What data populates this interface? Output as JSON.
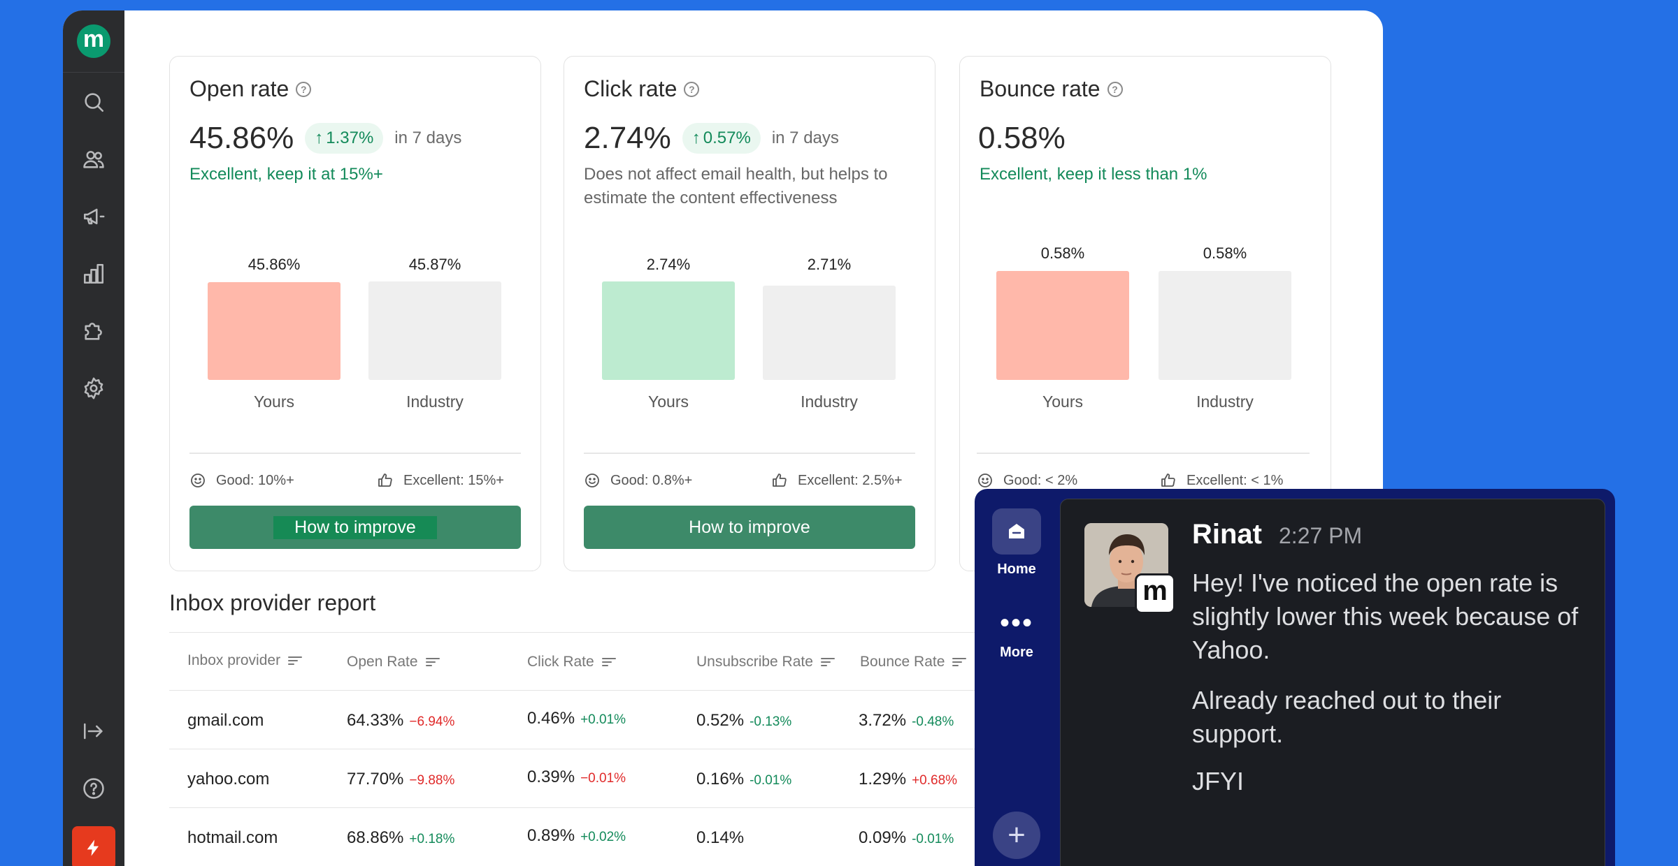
{
  "sidebar": {
    "logo_letter": "m",
    "items": [
      "search-icon",
      "contacts-icon",
      "campaigns-icon",
      "reports-icon",
      "integrations-icon",
      "settings-icon"
    ],
    "bottom_items": [
      "collapse-icon",
      "help-icon",
      "bolt-icon"
    ]
  },
  "cards": [
    {
      "title": "Open rate",
      "value": "45.86%",
      "delta": "1.37%",
      "period": "in 7 days",
      "note": "Excellent, keep it at 15%+",
      "yours_value": "45.86%",
      "industry_value": "45.87%",
      "yours_label": "Yours",
      "industry_label": "Industry",
      "good": "Good: 10%+",
      "excellent": "Excellent: 15%+",
      "button": "How to improve"
    },
    {
      "title": "Click rate",
      "value": "2.74%",
      "delta": "0.57%",
      "period": "in 7 days",
      "note": "Does not affect email health, but helps to estimate the content effectiveness",
      "yours_value": "2.74%",
      "industry_value": "2.71%",
      "yours_label": "Yours",
      "industry_label": "Industry",
      "good": "Good: 0.8%+",
      "excellent": "Excellent: 2.5%+",
      "button": "How to improve"
    },
    {
      "title": "Bounce rate",
      "value": "0.58%",
      "note": "Excellent, keep it less than 1%",
      "yours_value": "0.58%",
      "industry_value": "0.58%",
      "yours_label": "Yours",
      "industry_label": "Industry",
      "good": "Good: < 2%",
      "excellent": "Excellent: < 1%"
    }
  ],
  "colors": {
    "bar_bad": "#ffb8aa",
    "bar_good": "#bdebd0",
    "bar_industry": "#efefef"
  },
  "report": {
    "title": "Inbox provider report",
    "columns": [
      "Inbox provider",
      "Open Rate",
      "Click Rate",
      "Unsubscribe Rate",
      "Bounce Rate"
    ],
    "rows": [
      {
        "provider": "gmail.com",
        "open": "64.33%",
        "open_chg": "−6.94%",
        "click": "0.46%",
        "click_chg": "+0.01%",
        "unsub": "0.52%",
        "unsub_chg": "-0.13%",
        "bounce": "3.72%",
        "bounce_chg": "-0.48%"
      },
      {
        "provider": "yahoo.com",
        "open": "77.70%",
        "open_chg": "−9.88%",
        "click": "0.39%",
        "click_chg": "−0.01%",
        "unsub": "0.16%",
        "unsub_chg": "-0.01%",
        "bounce": "1.29%",
        "bounce_chg": "+0.68%"
      },
      {
        "provider": "hotmail.com",
        "open": "68.86%",
        "open_chg": "+0.18%",
        "click": "0.89%",
        "click_chg": "+0.02%",
        "unsub": "0.14%",
        "unsub_chg": "",
        "bounce": "0.09%",
        "bounce_chg": "-0.01%"
      }
    ]
  },
  "chat": {
    "nav_home": "Home",
    "nav_more": "More",
    "more_glyph": "•••",
    "add_glyph": "+",
    "badge_letter": "m",
    "sender": "Rinat",
    "time": "2:27 PM",
    "messages": [
      "Hey! I've noticed the open rate is slightly lower this week because of Yahoo.",
      "Already reached out to their support.",
      "JFYI"
    ]
  }
}
